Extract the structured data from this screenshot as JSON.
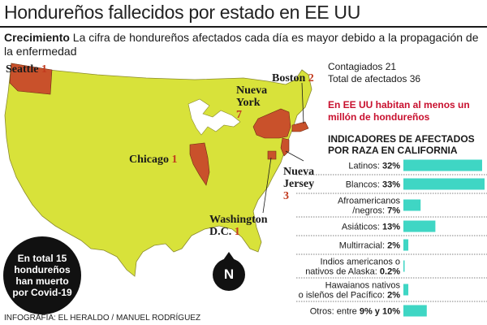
{
  "header": {
    "title": "Hondureños fallecidos por estado en EE UU",
    "subtitle_bold": "Crecimiento",
    "subtitle_text": " La cifra de hondureños afectados cada día es mayor debido a la propagación de la enfermedad"
  },
  "map": {
    "cities": [
      {
        "id": "seattle",
        "name": "Seattle",
        "count": "1"
      },
      {
        "id": "boston",
        "name": "Boston",
        "count": "2"
      },
      {
        "id": "nueva-york",
        "name1": "Nueva",
        "name2": "York",
        "count": "7"
      },
      {
        "id": "chicago",
        "name": "Chicago",
        "count": "1"
      },
      {
        "id": "nueva-jersey",
        "name1": "Nueva",
        "name2": "Jersey",
        "count": "3"
      },
      {
        "id": "washington",
        "name1": "Washington",
        "name2": "D.C.",
        "count": "1"
      }
    ],
    "total_badge": "En total 15 hondureños han muerto por Covid-19",
    "compass": "N",
    "colors": {
      "land": "#d8e23a",
      "highlight": "#c9512b",
      "water": "#ffffff",
      "border": "#8a8a2e"
    }
  },
  "stats": {
    "contagiados": "Contagiados 21",
    "total_afectados": "Total de afectados 36"
  },
  "note": "En EE UU habitan al menos un millón de hondureños",
  "indicators_title": "INDICADORES DE AFECTADOS POR RAZA EN CALIFORNIA",
  "chart_data": {
    "type": "bar",
    "orientation": "horizontal",
    "title": "INDICADORES DE AFECTADOS POR RAZA EN CALIFORNIA",
    "bar_color": "#3fd6c4",
    "categories": [
      {
        "lines": [
          "Latinos: ",
          "32%"
        ],
        "value": 32
      },
      {
        "lines": [
          "Blancos: ",
          "33%"
        ],
        "value": 33
      },
      {
        "lines": [
          "Afroamericanos",
          "/negros: ",
          "7%"
        ],
        "value": 7
      },
      {
        "lines": [
          "Asiáticos: ",
          "13%"
        ],
        "value": 13
      },
      {
        "lines": [
          "Multirracial: ",
          "2%"
        ],
        "value": 2
      },
      {
        "lines": [
          "Indios americanos o",
          "nativos de Alaska: ",
          "0.2%"
        ],
        "value": 0.2
      },
      {
        "lines": [
          "Hawaianos nativos",
          "o isleños del Pacífico: ",
          "2%"
        ],
        "value": 2
      },
      {
        "lines": [
          "Otros: entre ",
          "9% y 10%"
        ],
        "value": 9.5
      }
    ],
    "xlim": [
      0,
      33
    ]
  },
  "credit": "INFOGRAFÍA: EL HERALDO / MANUEL RODRÍGUEZ"
}
